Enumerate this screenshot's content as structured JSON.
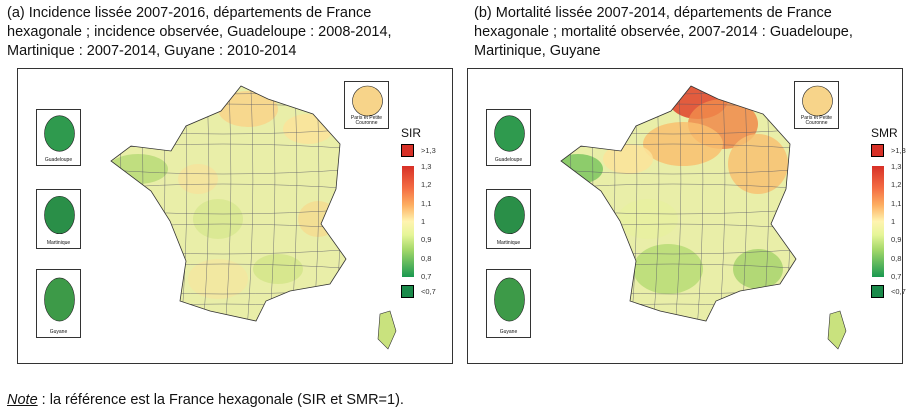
{
  "panel_a": {
    "caption": "(a) Incidence lissée 2007-2016, départements de France hexagonale ; incidence observée, Guadeloupe : 2008-2014, Martinique : 2007-2014, Guyane : 2010-2014",
    "legend_title": "SIR",
    "legend_above": ">1,3",
    "legend_below": "<0,7",
    "ticks": [
      "1,3",
      "1,2",
      "1,1",
      "1",
      "0,9",
      "0,8",
      "0,7"
    ],
    "insets": {
      "paris": "Paris et Petite Couronne",
      "guadeloupe": "Guadeloupe",
      "martinique": "Martinique",
      "guyane": "Guyane"
    }
  },
  "panel_b": {
    "caption": "(b) Mortalité lissée 2007-2014, départements de France hexagonale ; mortalité observée, 2007-2014 : Guadeloupe, Martinique, Guyane",
    "legend_title": "SMR",
    "legend_above": ">1,3",
    "legend_below": "<0,7",
    "ticks": [
      "1,3",
      "1,2",
      "1,1",
      "1",
      "0,9",
      "0,8",
      "0,7"
    ],
    "insets": {
      "paris": "Paris et Petite Couronne",
      "guadeloupe": "Guadeloupe",
      "martinique": "Martinique",
      "guyane": "Guyane"
    }
  },
  "note": {
    "label": "Note",
    "text": " : la référence est la France hexagonale (SIR et SMR=1)."
  },
  "colors": {
    "high": "#d73027",
    "mid": "#ffffbf",
    "low": "#1a9850"
  }
}
